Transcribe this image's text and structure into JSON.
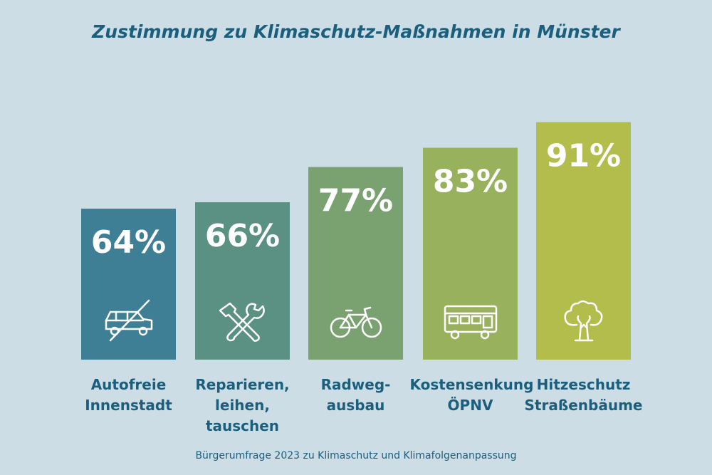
{
  "chart_data": {
    "type": "bar",
    "title": "Zustimmung zu Klimaschutz-Maßnahmen in Münster",
    "categories": [
      [
        "Autofreie",
        "Innenstadt"
      ],
      [
        "Reparieren,",
        "leihen,",
        "tauschen"
      ],
      [
        "Radweg-",
        "ausbau"
      ],
      [
        "Kostensenkung",
        "ÖPNV"
      ],
      [
        "Hitzeschutz",
        "Straßenbäume"
      ]
    ],
    "values": [
      64,
      66,
      77,
      83,
      91
    ],
    "value_labels": [
      "64%",
      "66%",
      "77%",
      "83%",
      "91%"
    ],
    "unit": "%",
    "colors": [
      "#3e7f96",
      "#5b9183",
      "#7aa271",
      "#98b15d",
      "#b3bd4b"
    ],
    "icons": [
      "car-crossed-icon",
      "tools-icon",
      "bicycle-icon",
      "bus-icon",
      "tree-icon"
    ],
    "ylim": [
      0,
      100
    ],
    "xlabel": "",
    "ylabel": "",
    "grid": false
  },
  "footnote": "Bürgerumfrage 2023 zu Klimaschutz und Klimafolgenanpassung"
}
